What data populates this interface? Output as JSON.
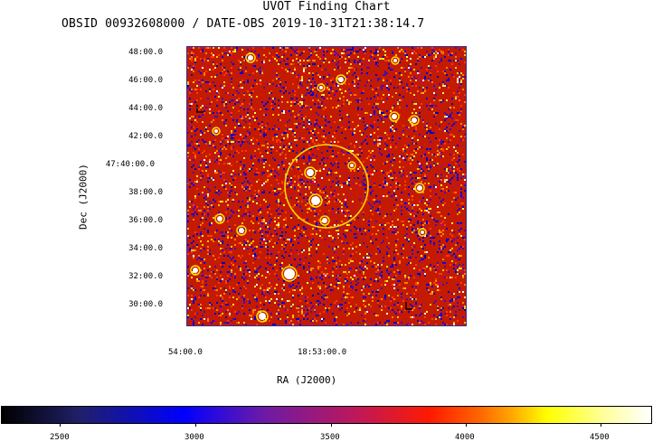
{
  "header": {
    "title": "UVOT Finding Chart",
    "subtitle": "OBSID 00932608000 / DATE-OBS 2019-10-31T21:38:14.7"
  },
  "chart_data": {
    "type": "heatmap",
    "title": "UVOT Finding Chart",
    "xlabel": "RA (J2000)",
    "ylabel": "Dec (J2000)",
    "x_ticks": [
      "54:00.0",
      "18:53:00.0"
    ],
    "y_ticks": [
      "48:00.0",
      "46:00.0",
      "44:00.0",
      "42:00.0",
      "47:40:00.0",
      "38:00.0",
      "36:00.0",
      "34:00.0",
      "32:00.0",
      "30:00.0"
    ],
    "colorbar": {
      "ticks": [
        "2500",
        "3000",
        "3500",
        "4000",
        "4500"
      ],
      "range": [
        2300,
        4700
      ],
      "colormap": [
        "#000000",
        "#0000ff",
        "#ff0000",
        "#ffff00",
        "#ffffff"
      ]
    },
    "marker": {
      "shape": "circle",
      "color": "#ffd700"
    },
    "grid": false
  }
}
